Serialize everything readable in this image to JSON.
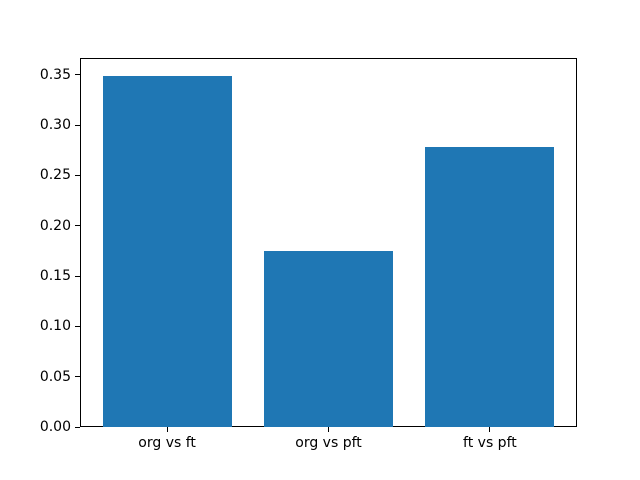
{
  "chart_data": {
    "type": "bar",
    "title": "",
    "xlabel": "",
    "ylabel": "",
    "categories": [
      "org vs ft",
      "org vs pft",
      "ft vs pft"
    ],
    "values": [
      0.349,
      0.175,
      0.278
    ],
    "bar_color": "#1f77b4",
    "bar_width": 0.8,
    "xlim": [
      -0.54,
      2.54
    ],
    "ylim": [
      0,
      0.3665
    ],
    "yticks": [
      0.0,
      0.05,
      0.1,
      0.15,
      0.2,
      0.25,
      0.3,
      0.35
    ],
    "ytick_labels": [
      "0.00",
      "0.05",
      "0.10",
      "0.15",
      "0.20",
      "0.25",
      "0.30",
      "0.35"
    ],
    "grid": false,
    "legend": null
  },
  "colors": {
    "background": "#ffffff",
    "spine": "#000000",
    "bar": "#1f77b4",
    "tick_text": "#000000"
  }
}
